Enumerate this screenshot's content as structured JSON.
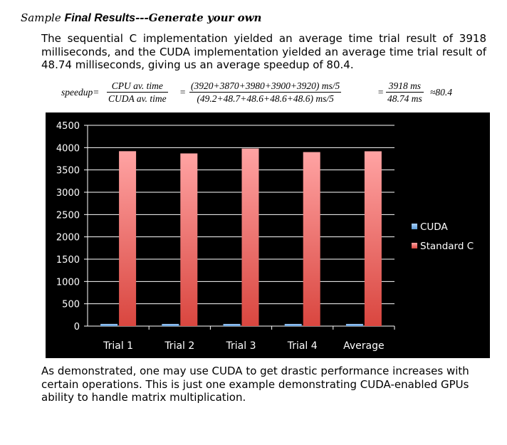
{
  "heading": {
    "part1": "Sample ",
    "part2": "Final Results",
    "part3": "---Generate your own"
  },
  "intro_text": "The sequential C implementation yielded an average time trial result of 3918 milliseconds, and the CUDA implementation yielded an average time trial result of 48.74 milliseconds, giving us an average speedup of 80.4.",
  "formula": {
    "lhs": "speedup=",
    "frac1_num": "CPU av. time",
    "frac1_den": "CUDA av. time",
    "eq1": "=",
    "frac2_num": "(3920+3870+3980+3900+3920) ms/5",
    "frac2_den": "(49.2+48.7+48.6+48.6+48.6) ms/5",
    "eq2": "=",
    "frac3_num": "3918 ms",
    "frac3_den": "48.74 ms",
    "approx": "≈80.4"
  },
  "chart_data": {
    "type": "bar",
    "categories": [
      "Trial 1",
      "Trial 2",
      "Trial 3",
      "Trial 4",
      "Average"
    ],
    "series": [
      {
        "name": "CUDA",
        "values": [
          49.2,
          48.7,
          48.6,
          48.6,
          48.74
        ],
        "color": "#5b9bd5"
      },
      {
        "name": "Standard C",
        "values": [
          3920,
          3870,
          3980,
          3900,
          3918
        ],
        "color": "#d9463f"
      }
    ],
    "ylim": [
      0,
      4500
    ],
    "yticks": [
      0,
      500,
      1000,
      1500,
      2000,
      2500,
      3000,
      3500,
      4000,
      4500
    ],
    "ytick_labels": [
      "0",
      "500",
      "1000",
      "1500",
      "2000",
      "2500",
      "3000",
      "3500",
      "4000",
      "4500"
    ],
    "grid": true,
    "legend": "right",
    "background": "#000000",
    "title": "",
    "xlabel": "",
    "ylabel": ""
  },
  "outro_text": "As demonstrated, one may use CUDA to get drastic performance increases with certain operations. This is just one example demonstrating CUDA-enabled GPUs ability to handle matrix multiplication."
}
